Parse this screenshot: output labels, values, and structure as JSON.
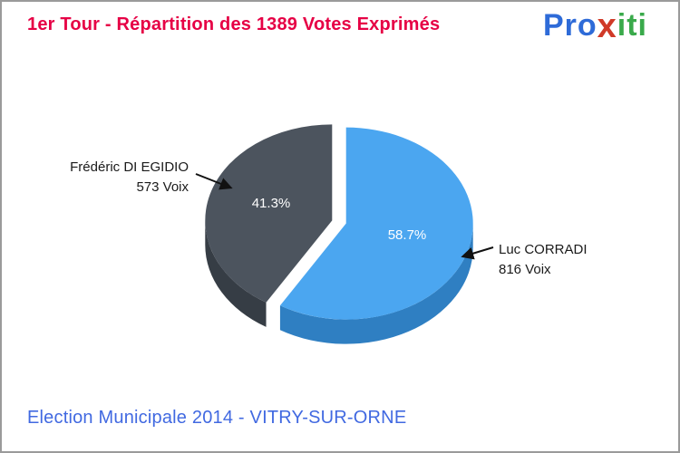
{
  "page": {
    "background": "#ffffff",
    "border_color": "#9a9a9a"
  },
  "header": {
    "title": "1er Tour - Répartition des 1389 Votes Exprimés",
    "title_color": "#e60045"
  },
  "logo": {
    "part1": "Pro",
    "part1_color": "#2e6bd8",
    "part2": "x",
    "part2_color": "#d03a28",
    "part3": "iti",
    "part3_color": "#3aaa4b"
  },
  "footer": {
    "text": "Election Municipale 2014 - VITRY-SUR-ORNE",
    "color": "#4169e1"
  },
  "chart_data": {
    "type": "pie",
    "title": "1er Tour - Répartition des 1389 Votes Exprimés",
    "total_votes": 1389,
    "effect_3d": true,
    "start_angle_deg": -90,
    "legend_position": "callout-labels",
    "slices": [
      {
        "label": "Luc CORRADI",
        "votes": 816,
        "votes_label": "816 Voix",
        "pct": 58.7,
        "pct_label": "58.7%",
        "color": "#4ba6f0",
        "side_color": "#2f7fc2"
      },
      {
        "label": "Frédéric DI EGIDIO",
        "votes": 573,
        "votes_label": "573 Voix",
        "pct": 41.3,
        "pct_label": "41.3%",
        "color": "#4c545e",
        "side_color": "#363d45"
      }
    ]
  }
}
